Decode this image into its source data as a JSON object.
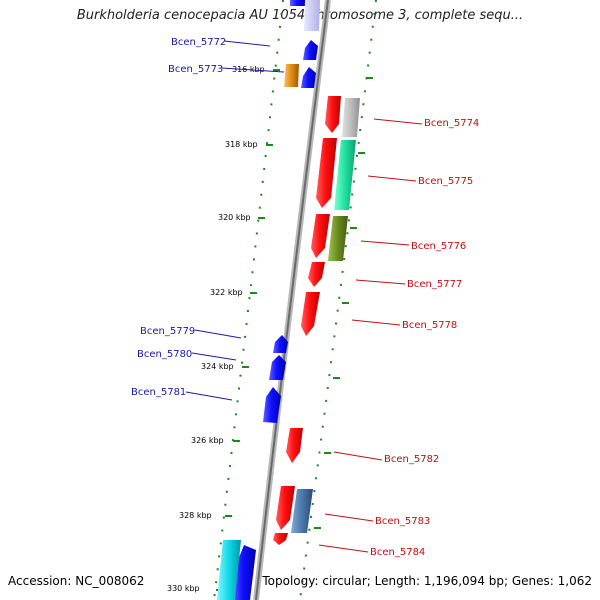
{
  "title": "Burkholderia cenocepacia AU 1054 chromosome 3, complete sequ...",
  "accession": "Accession: NC_008062",
  "summary": "Topology: circular; Length: 1,196,094 bp; Genes: 1,062",
  "kbp_ticks": [
    {
      "label": "316 kbp",
      "kbp": 316
    },
    {
      "label": "318 kbp",
      "kbp": 318
    },
    {
      "label": "320 kbp",
      "kbp": 320
    },
    {
      "label": "322 kbp",
      "kbp": 322
    },
    {
      "label": "324 kbp",
      "kbp": 324
    },
    {
      "label": "326 kbp",
      "kbp": 326
    },
    {
      "label": "328 kbp",
      "kbp": 328
    },
    {
      "label": "330 kbp",
      "kbp": 330
    }
  ],
  "gene_labels_left": [
    {
      "id": "Bcen_5772"
    },
    {
      "id": "Bcen_5773"
    },
    {
      "id": "Bcen_5779"
    },
    {
      "id": "Bcen_5780"
    },
    {
      "id": "Bcen_5781"
    }
  ],
  "gene_labels_right": [
    {
      "id": "Bcen_5774"
    },
    {
      "id": "Bcen_5775"
    },
    {
      "id": "Bcen_5776"
    },
    {
      "id": "Bcen_5777"
    },
    {
      "id": "Bcen_5778"
    },
    {
      "id": "Bcen_5782"
    },
    {
      "id": "Bcen_5783"
    },
    {
      "id": "Bcen_5784"
    }
  ],
  "colors": {
    "backbone": "#8a8a8a",
    "tick_dotted": "#1a8a1a",
    "forward_gene": "#1010e0",
    "reverse_gene": "#e01010",
    "left_label": "#1a1aa8",
    "right_label": "#c01010",
    "orange_feature": "#e08a10",
    "grey_feature": "#b8b8b8",
    "teal_feature": "#20d8a0",
    "olive_feature": "#6a8a20",
    "steel_feature": "#4a78a8",
    "cyan_feature": "#10d8e8"
  }
}
